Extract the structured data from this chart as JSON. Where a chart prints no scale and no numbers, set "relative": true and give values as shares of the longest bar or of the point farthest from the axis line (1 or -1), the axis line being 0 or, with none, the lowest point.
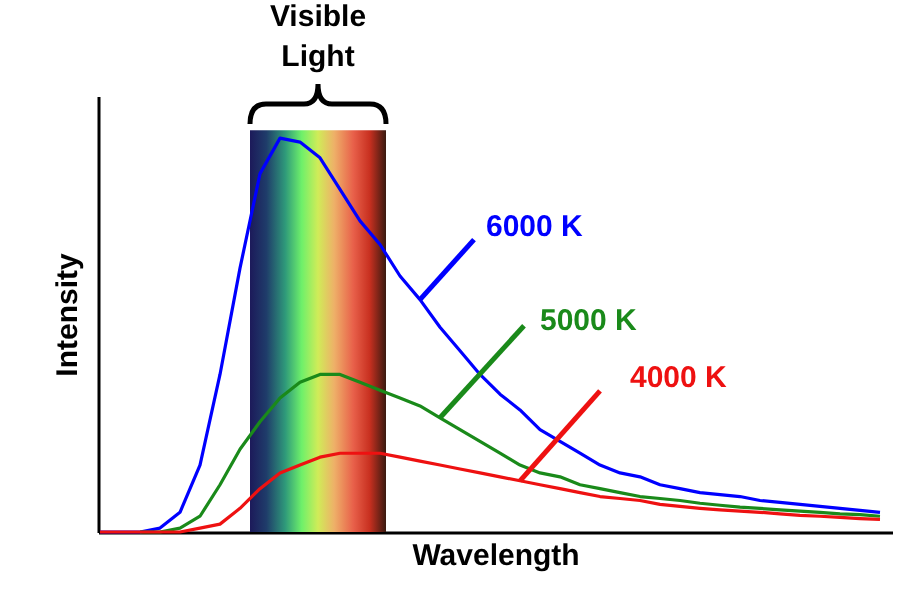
{
  "chart_data": {
    "type": "line",
    "relative": true,
    "xlabel": "Wavelength",
    "ylabel": "Intensity",
    "annotations": [
      "Visible Light"
    ],
    "categories": [
      null,
      null,
      null,
      null,
      null,
      null,
      null,
      null,
      null,
      null,
      null,
      null,
      null,
      null,
      null,
      null,
      null,
      null,
      null,
      null,
      null,
      null,
      null,
      null,
      null,
      null,
      null,
      null,
      null,
      null,
      null,
      null,
      null,
      null,
      null,
      null,
      null,
      null,
      null,
      null
    ],
    "series": [
      {
        "name": "6000 K",
        "color": "#0000ff",
        "values": [
          0,
          0,
          0,
          0.01,
          0.05,
          0.17,
          0.4,
          0.67,
          0.91,
          1,
          0.99,
          0.95,
          0.87,
          0.79,
          0.73,
          0.65,
          0.59,
          0.52,
          0.46,
          0.4,
          0.35,
          0.31,
          0.26,
          0.23,
          0.2,
          0.17,
          0.15,
          0.14,
          0.12,
          0.11,
          0.1,
          0.095,
          0.09,
          0.08,
          0.075,
          0.07,
          0.065,
          0.06,
          0.055,
          0.05
        ]
      },
      {
        "name": "5000 K",
        "color": "#1a8a1a",
        "values": [
          null,
          null,
          0,
          0,
          0.01,
          0.04,
          0.12,
          0.21,
          0.28,
          0.34,
          0.38,
          0.4,
          0.4,
          0.38,
          0.36,
          0.34,
          0.32,
          0.29,
          0.26,
          0.23,
          0.2,
          0.17,
          0.15,
          0.14,
          0.12,
          0.11,
          0.1,
          0.09,
          0.085,
          0.08,
          0.073,
          0.068,
          0.063,
          0.06,
          0.056,
          0.053,
          0.05,
          0.046,
          0.044,
          0.04
        ]
      },
      {
        "name": "4000 K",
        "color": "#ee1111",
        "values": [
          0,
          0,
          0,
          0,
          0,
          0.01,
          0.02,
          0.06,
          0.11,
          0.15,
          0.17,
          0.19,
          0.2,
          0.2,
          0.2,
          0.19,
          0.18,
          0.17,
          0.16,
          0.15,
          0.14,
          0.13,
          0.12,
          0.11,
          0.1,
          0.09,
          0.085,
          0.08,
          0.07,
          0.065,
          0.06,
          0.056,
          0.053,
          0.05,
          0.046,
          0.042,
          0.04,
          0.037,
          0.034,
          0.032
        ]
      }
    ]
  }
}
